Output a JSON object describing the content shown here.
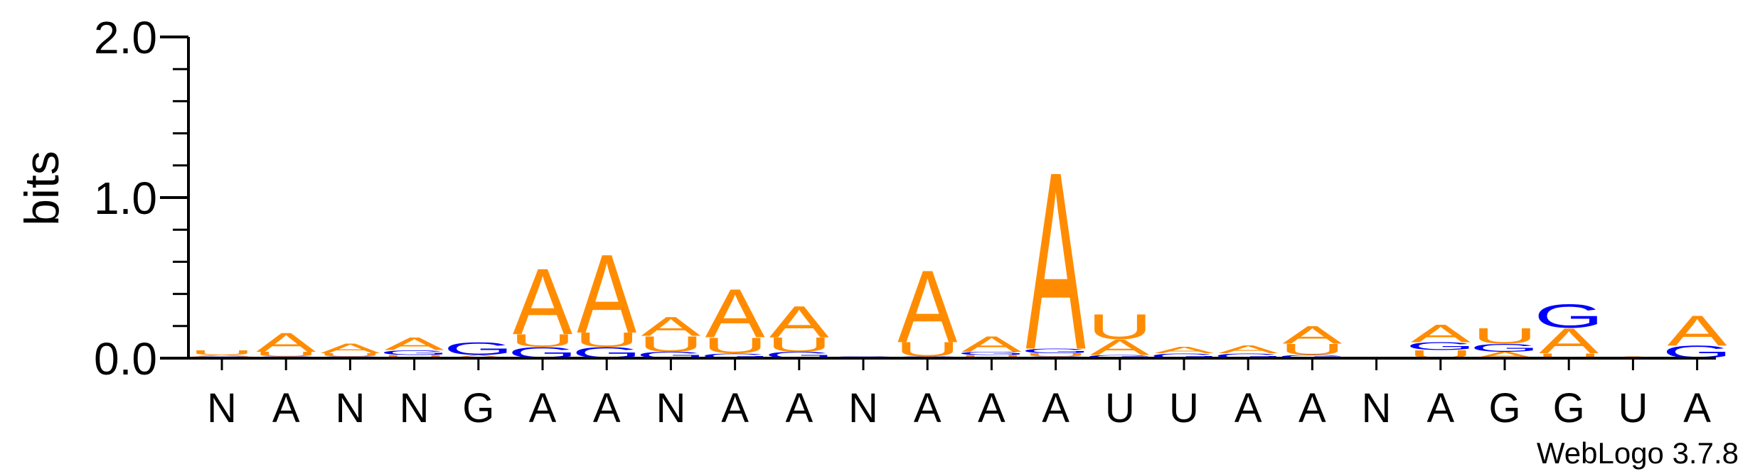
{
  "chart_data": {
    "type": "sequence-logo",
    "ylabel": "bits",
    "ylim": [
      0,
      2.0
    ],
    "y_ticks": [
      "0.0",
      "1.0",
      "2.0"
    ],
    "positions": [
      "N",
      "A",
      "N",
      "N",
      "G",
      "A",
      "A",
      "N",
      "A",
      "A",
      "N",
      "A",
      "A",
      "A",
      "U",
      "U",
      "A",
      "A",
      "N",
      "A",
      "G",
      "G",
      "U",
      "A"
    ],
    "stacks": [
      [
        {
          "l": "G",
          "v": 0.01
        },
        {
          "l": "A",
          "v": 0.01
        },
        {
          "l": "U",
          "v": 0.03
        }
      ],
      [
        {
          "l": "G",
          "v": 0.01
        },
        {
          "l": "U",
          "v": 0.03
        },
        {
          "l": "A",
          "v": 0.12
        }
      ],
      [
        {
          "l": "G",
          "v": 0.01
        },
        {
          "l": "U",
          "v": 0.02
        },
        {
          "l": "A",
          "v": 0.06
        }
      ],
      [
        {
          "l": "U",
          "v": 0.02
        },
        {
          "l": "G",
          "v": 0.03
        },
        {
          "l": "A",
          "v": 0.08
        }
      ],
      [
        {
          "l": "A",
          "v": 0.02
        },
        {
          "l": "G",
          "v": 0.08
        }
      ],
      [
        {
          "l": "G",
          "v": 0.07
        },
        {
          "l": "U",
          "v": 0.08
        },
        {
          "l": "A",
          "v": 0.42
        }
      ],
      [
        {
          "l": "G",
          "v": 0.07
        },
        {
          "l": "U",
          "v": 0.09
        },
        {
          "l": "A",
          "v": 0.5
        }
      ],
      [
        {
          "l": "G",
          "v": 0.04
        },
        {
          "l": "U",
          "v": 0.1
        },
        {
          "l": "A",
          "v": 0.12
        }
      ],
      [
        {
          "l": "G",
          "v": 0.03
        },
        {
          "l": "U",
          "v": 0.1
        },
        {
          "l": "A",
          "v": 0.31
        }
      ],
      [
        {
          "l": "G",
          "v": 0.04
        },
        {
          "l": "U",
          "v": 0.09
        },
        {
          "l": "A",
          "v": 0.2
        }
      ],
      [
        {
          "l": "G",
          "v": 0.01
        }
      ],
      [
        {
          "l": "G",
          "v": 0.01
        },
        {
          "l": "U",
          "v": 0.09
        },
        {
          "l": "A",
          "v": 0.46
        }
      ],
      [
        {
          "l": "U",
          "v": 0.02
        },
        {
          "l": "G",
          "v": 0.02
        },
        {
          "l": "A",
          "v": 0.1
        }
      ],
      [
        {
          "l": "G",
          "v": 0.01
        },
        {
          "l": "U",
          "v": 0.02
        },
        {
          "l": "G",
          "v": 0.03
        },
        {
          "l": "A",
          "v": 1.13
        }
      ],
      [
        {
          "l": "G",
          "v": 0.02
        },
        {
          "l": "A",
          "v": 0.1
        },
        {
          "l": "U",
          "v": 0.16
        }
      ],
      [
        {
          "l": "G",
          "v": 0.03
        },
        {
          "l": "A",
          "v": 0.04
        }
      ],
      [
        {
          "l": "G",
          "v": 0.03
        },
        {
          "l": "A",
          "v": 0.05
        }
      ],
      [
        {
          "l": "G",
          "v": 0.02
        },
        {
          "l": "U",
          "v": 0.07
        },
        {
          "l": "A",
          "v": 0.11
        }
      ],
      [],
      [
        {
          "l": "U",
          "v": 0.05
        },
        {
          "l": "G",
          "v": 0.05
        },
        {
          "l": "A",
          "v": 0.11
        }
      ],
      [
        {
          "l": "A",
          "v": 0.04
        },
        {
          "l": "G",
          "v": 0.05
        },
        {
          "l": "U",
          "v": 0.1
        }
      ],
      [
        {
          "l": "U",
          "v": 0.03
        },
        {
          "l": "A",
          "v": 0.16
        },
        {
          "l": "G",
          "v": 0.15
        }
      ],
      [
        {
          "l": "A",
          "v": 0.01
        }
      ],
      [
        {
          "l": "G",
          "v": 0.08
        },
        {
          "l": "A",
          "v": 0.19
        }
      ]
    ],
    "colors": {
      "A": "#ff8c00",
      "U": "#ff8c00",
      "G": "#0000ff",
      "C": "#0000ff"
    }
  },
  "credit": "WebLogo 3.7.8"
}
